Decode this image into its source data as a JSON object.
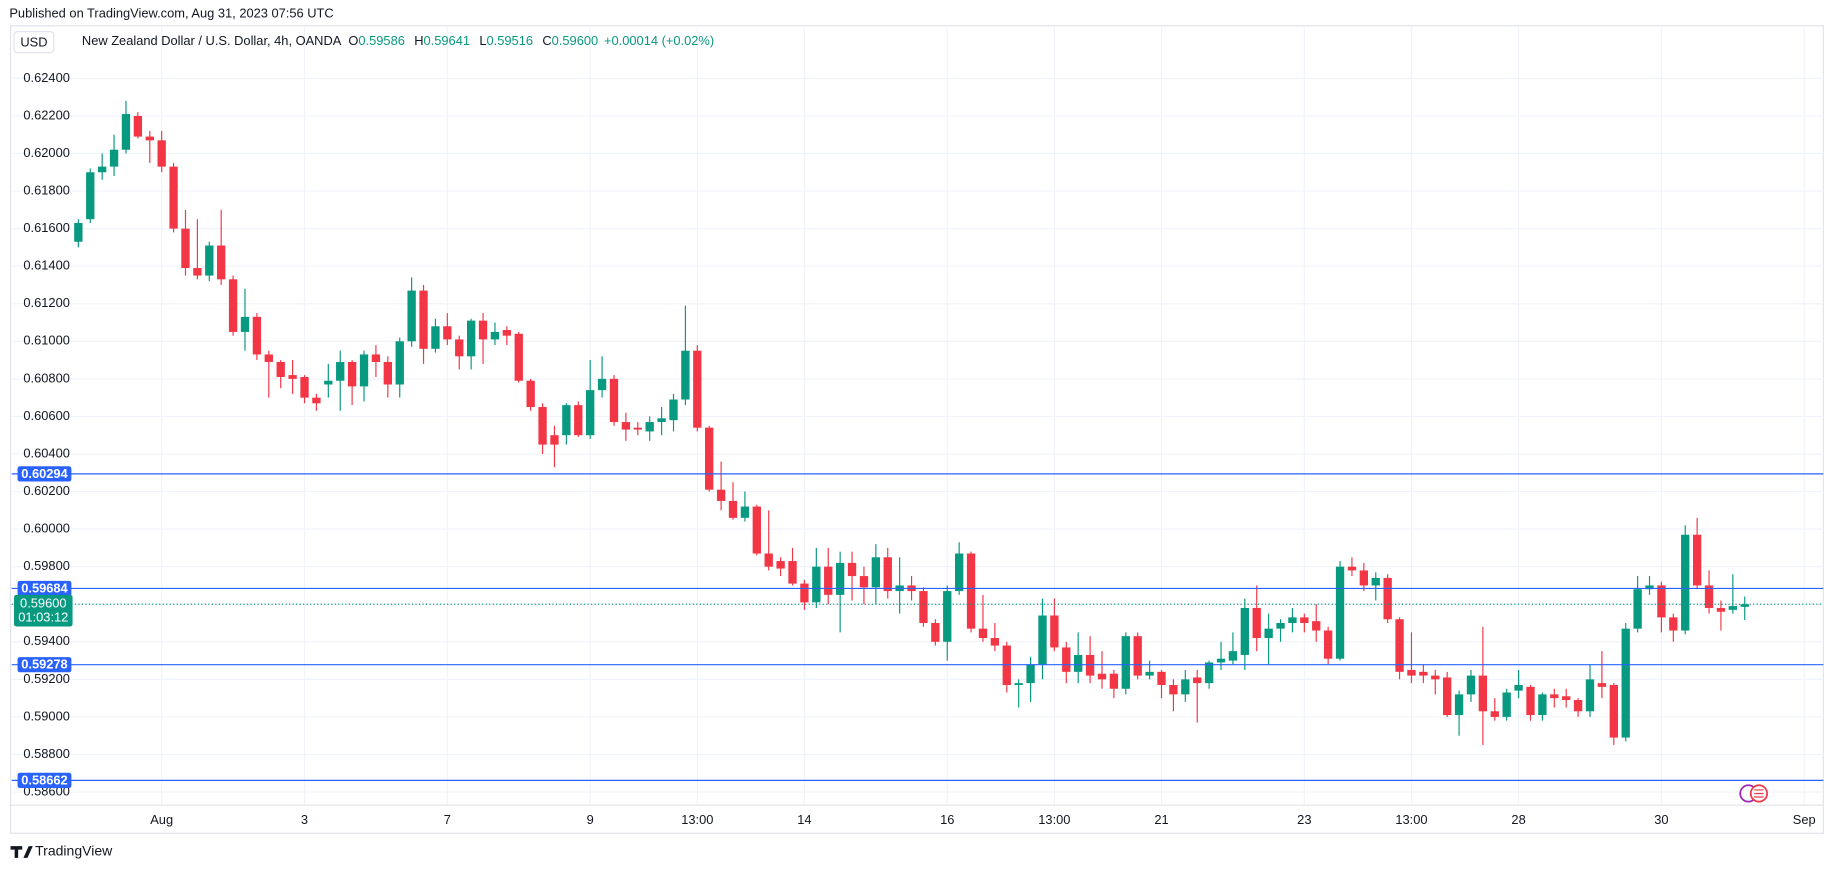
{
  "header": {
    "published": "Published on TradingView.com, Aug 31, 2023 07:56 UTC",
    "currency": "USD",
    "symbol": "New Zealand Dollar / U.S. Dollar, 4h, OANDA",
    "ohlc": [
      {
        "key": "O",
        "value": "0.59586"
      },
      {
        "key": "H",
        "value": "0.59641"
      },
      {
        "key": "L",
        "value": "0.59516"
      },
      {
        "key": "C",
        "value": "0.59600"
      }
    ],
    "change": "+0.00014 (+0.02%)"
  },
  "footer": "TradingView",
  "chart_data": {
    "type": "candlestick",
    "up_color": "#089981",
    "down_color": "#f23645",
    "grid": true,
    "xlim": [
      -5.6,
      146.6
    ],
    "xticks": [
      {
        "value": 7,
        "label": "Aug"
      },
      {
        "value": 19,
        "label": "3"
      },
      {
        "value": 31,
        "label": "7"
      },
      {
        "value": 43,
        "label": "9"
      },
      {
        "value": 52,
        "label": "13:00"
      },
      {
        "value": 61,
        "label": "14"
      },
      {
        "value": 73,
        "label": "16"
      },
      {
        "value": 82,
        "label": "13:00"
      },
      {
        "value": 91,
        "label": "21"
      },
      {
        "value": 103,
        "label": "23"
      },
      {
        "value": 112,
        "label": "13:00"
      },
      {
        "value": 121,
        "label": "28"
      },
      {
        "value": 133,
        "label": "30"
      },
      {
        "value": 145,
        "label": "Sep"
      }
    ],
    "ylim": [
      0.5853,
      0.6268
    ],
    "yticks": [
      {
        "value": 0.624,
        "label": "0.62400"
      },
      {
        "value": 0.622,
        "label": "0.62200"
      },
      {
        "value": 0.62,
        "label": "0.62000"
      },
      {
        "value": 0.618,
        "label": "0.61800"
      },
      {
        "value": 0.616,
        "label": "0.61600"
      },
      {
        "value": 0.614,
        "label": "0.61400"
      },
      {
        "value": 0.612,
        "label": "0.61200"
      },
      {
        "value": 0.61,
        "label": "0.61000"
      },
      {
        "value": 0.608,
        "label": "0.60800"
      },
      {
        "value": 0.606,
        "label": "0.60600"
      },
      {
        "value": 0.604,
        "label": "0.60400"
      },
      {
        "value": 0.602,
        "label": "0.60200"
      },
      {
        "value": 0.6,
        "label": "0.60000"
      },
      {
        "value": 0.598,
        "label": "0.59800"
      },
      {
        "value": 0.596,
        "label": "0.59600"
      },
      {
        "value": 0.594,
        "label": "0.59400"
      },
      {
        "value": 0.592,
        "label": "0.59200"
      },
      {
        "value": 0.59,
        "label": "0.59000"
      },
      {
        "value": 0.588,
        "label": "0.58800"
      },
      {
        "value": 0.586,
        "label": "0.58600"
      }
    ],
    "price_lines": [
      0.60294,
      0.59684,
      0.59278,
      0.58662
    ],
    "price_line_color": "#2962ff",
    "last_price": {
      "value": 0.596,
      "label": "0.59600"
    },
    "countdown": "01:03:12",
    "open": [
      0.6153,
      0.6165,
      0.619,
      0.6193,
      0.6202,
      0.622,
      0.6209,
      0.6207,
      0.6193,
      0.616,
      0.6139,
      0.6135,
      0.6151,
      0.6133,
      0.6105,
      0.6113,
      0.6093,
      0.6089,
      0.6082,
      0.6081,
      0.607,
      0.6077,
      0.6079,
      0.6089,
      0.6076,
      0.6093,
      0.6089,
      0.6077,
      0.61,
      0.6127,
      0.6096,
      0.6108,
      0.6101,
      0.6092,
      0.6111,
      0.6101,
      0.6106,
      0.6104,
      0.6079,
      0.6065,
      0.605,
      0.605,
      0.6066,
      0.605,
      0.6074,
      0.608,
      0.6057,
      0.6054,
      0.6052,
      0.6057,
      0.6058,
      0.6069,
      0.6095,
      0.6054,
      0.6021,
      0.6015,
      0.6006,
      0.6012,
      0.5987,
      0.5983,
      0.5983,
      0.5971,
      0.5961,
      0.598,
      0.5965,
      0.5982,
      0.5975,
      0.5969,
      0.5985,
      0.5967,
      0.597,
      0.5967,
      0.595,
      0.594,
      0.5967,
      0.5987,
      0.5947,
      0.5942,
      0.5938,
      0.5917,
      0.5918,
      0.5928,
      0.5954,
      0.5937,
      0.5924,
      0.5933,
      0.5923,
      0.5923,
      0.5915,
      0.5943,
      0.5922,
      0.5924,
      0.5917,
      0.5912,
      0.5921,
      0.5918,
      0.5929,
      0.593,
      0.5933,
      0.5958,
      0.5942,
      0.5947,
      0.595,
      0.5953,
      0.5951,
      0.5946,
      0.5931,
      0.598,
      0.5978,
      0.597,
      0.5974,
      0.5952,
      0.5925,
      0.5924,
      0.5922,
      0.5921,
      0.5901,
      0.5912,
      0.5922,
      0.5903,
      0.59,
      0.5914,
      0.5916,
      0.5901,
      0.5912,
      0.5911,
      0.5909,
      0.5903,
      0.5918,
      0.5917,
      0.5889,
      0.5947,
      0.5968,
      0.597,
      0.5953,
      0.5946,
      0.5997,
      0.597,
      0.5958,
      0.5957,
      0.59586
    ],
    "high": [
      0.6165,
      0.6192,
      0.62,
      0.621,
      0.6228,
      0.6222,
      0.6212,
      0.6212,
      0.6195,
      0.617,
      0.6165,
      0.6153,
      0.617,
      0.6135,
      0.6128,
      0.6115,
      0.6095,
      0.609,
      0.609,
      0.6082,
      0.6072,
      0.6088,
      0.6095,
      0.609,
      0.6095,
      0.6098,
      0.6092,
      0.6102,
      0.6134,
      0.613,
      0.6112,
      0.6115,
      0.6103,
      0.6112,
      0.6115,
      0.611,
      0.6108,
      0.6105,
      0.608,
      0.6067,
      0.6055,
      0.6067,
      0.6068,
      0.609,
      0.6092,
      0.6082,
      0.6062,
      0.6057,
      0.606,
      0.6065,
      0.6072,
      0.6119,
      0.6098,
      0.6055,
      0.6036,
      0.6025,
      0.602,
      0.6013,
      0.601,
      0.5985,
      0.599,
      0.5973,
      0.599,
      0.599,
      0.5988,
      0.5988,
      0.598,
      0.5992,
      0.599,
      0.5985,
      0.5975,
      0.5969,
      0.5952,
      0.597,
      0.5993,
      0.5988,
      0.5965,
      0.595,
      0.594,
      0.592,
      0.5932,
      0.5963,
      0.5963,
      0.594,
      0.5945,
      0.5943,
      0.5935,
      0.5925,
      0.5945,
      0.5945,
      0.593,
      0.5925,
      0.592,
      0.5925,
      0.5925,
      0.593,
      0.594,
      0.5945,
      0.5963,
      0.597,
      0.5955,
      0.5952,
      0.5958,
      0.5955,
      0.596,
      0.5948,
      0.5983,
      0.5985,
      0.5982,
      0.5977,
      0.5976,
      0.5953,
      0.5945,
      0.5928,
      0.5925,
      0.5924,
      0.5914,
      0.5925,
      0.5948,
      0.591,
      0.5915,
      0.5925,
      0.5917,
      0.5913,
      0.5915,
      0.5915,
      0.591,
      0.5928,
      0.5935,
      0.5918,
      0.595,
      0.5975,
      0.5975,
      0.5972,
      0.5955,
      0.6002,
      0.6006,
      0.5978,
      0.5962,
      0.5976,
      0.59641
    ],
    "low": [
      0.615,
      0.6163,
      0.6186,
      0.6188,
      0.62,
      0.6208,
      0.6195,
      0.619,
      0.6158,
      0.6135,
      0.6133,
      0.6132,
      0.613,
      0.6103,
      0.6095,
      0.609,
      0.607,
      0.6075,
      0.6072,
      0.6067,
      0.6063,
      0.607,
      0.6063,
      0.6066,
      0.6068,
      0.6081,
      0.607,
      0.607,
      0.6097,
      0.6088,
      0.6094,
      0.6098,
      0.6085,
      0.6085,
      0.6088,
      0.6098,
      0.6098,
      0.6078,
      0.6063,
      0.604,
      0.6033,
      0.6045,
      0.6049,
      0.6048,
      0.607,
      0.6055,
      0.6047,
      0.605,
      0.6047,
      0.605,
      0.6052,
      0.6066,
      0.6052,
      0.602,
      0.601,
      0.6005,
      0.6004,
      0.5986,
      0.5978,
      0.5975,
      0.597,
      0.5957,
      0.5958,
      0.596,
      0.5945,
      0.5962,
      0.596,
      0.596,
      0.5963,
      0.5955,
      0.5962,
      0.5948,
      0.5938,
      0.593,
      0.5965,
      0.5945,
      0.594,
      0.5935,
      0.5913,
      0.5905,
      0.5908,
      0.592,
      0.5935,
      0.5918,
      0.5918,
      0.5918,
      0.5915,
      0.591,
      0.5912,
      0.592,
      0.592,
      0.591,
      0.5903,
      0.5908,
      0.5897,
      0.5915,
      0.5925,
      0.5928,
      0.5925,
      0.5935,
      0.5928,
      0.594,
      0.5945,
      0.5945,
      0.594,
      0.5928,
      0.593,
      0.5975,
      0.5967,
      0.5962,
      0.595,
      0.592,
      0.5918,
      0.5918,
      0.5912,
      0.59,
      0.589,
      0.5908,
      0.5885,
      0.5898,
      0.5898,
      0.591,
      0.5898,
      0.5898,
      0.5905,
      0.5905,
      0.59,
      0.59,
      0.591,
      0.5885,
      0.5887,
      0.5945,
      0.5965,
      0.5945,
      0.594,
      0.5944,
      0.5968,
      0.5955,
      0.5946,
      0.5955,
      0.59516
    ],
    "close": [
      0.6163,
      0.619,
      0.6193,
      0.6202,
      0.6221,
      0.6209,
      0.6207,
      0.6193,
      0.616,
      0.6139,
      0.6135,
      0.6151,
      0.6133,
      0.6105,
      0.6113,
      0.6093,
      0.6089,
      0.6081,
      0.608,
      0.607,
      0.6067,
      0.6079,
      0.6089,
      0.6076,
      0.6093,
      0.6089,
      0.6077,
      0.61,
      0.6127,
      0.6096,
      0.6108,
      0.6101,
      0.6092,
      0.6111,
      0.6101,
      0.6105,
      0.6103,
      0.6079,
      0.6065,
      0.6045,
      0.6045,
      0.6066,
      0.605,
      0.6074,
      0.608,
      0.6057,
      0.6053,
      0.6053,
      0.6057,
      0.6059,
      0.6069,
      0.6095,
      0.6054,
      0.6021,
      0.6015,
      0.6006,
      0.6012,
      0.5987,
      0.598,
      0.5979,
      0.5971,
      0.5961,
      0.598,
      0.5965,
      0.5982,
      0.5975,
      0.5969,
      0.5985,
      0.5967,
      0.597,
      0.5967,
      0.595,
      0.594,
      0.5967,
      0.5987,
      0.5947,
      0.5942,
      0.5938,
      0.5917,
      0.5918,
      0.5928,
      0.5954,
      0.5937,
      0.5924,
      0.5933,
      0.5922,
      0.592,
      0.5915,
      0.5943,
      0.5922,
      0.5924,
      0.5917,
      0.5912,
      0.592,
      0.5918,
      0.5929,
      0.5931,
      0.5935,
      0.5958,
      0.5942,
      0.5947,
      0.595,
      0.5953,
      0.595,
      0.5946,
      0.5931,
      0.598,
      0.5978,
      0.597,
      0.5974,
      0.5952,
      0.5924,
      0.5922,
      0.5922,
      0.592,
      0.5901,
      0.5912,
      0.5922,
      0.5903,
      0.59,
      0.5913,
      0.5917,
      0.5901,
      0.5912,
      0.591,
      0.5909,
      0.5903,
      0.592,
      0.5916,
      0.5889,
      0.5947,
      0.5968,
      0.597,
      0.5953,
      0.5946,
      0.5997,
      0.597,
      0.5958,
      0.5956,
      0.5959,
      0.596
    ]
  }
}
